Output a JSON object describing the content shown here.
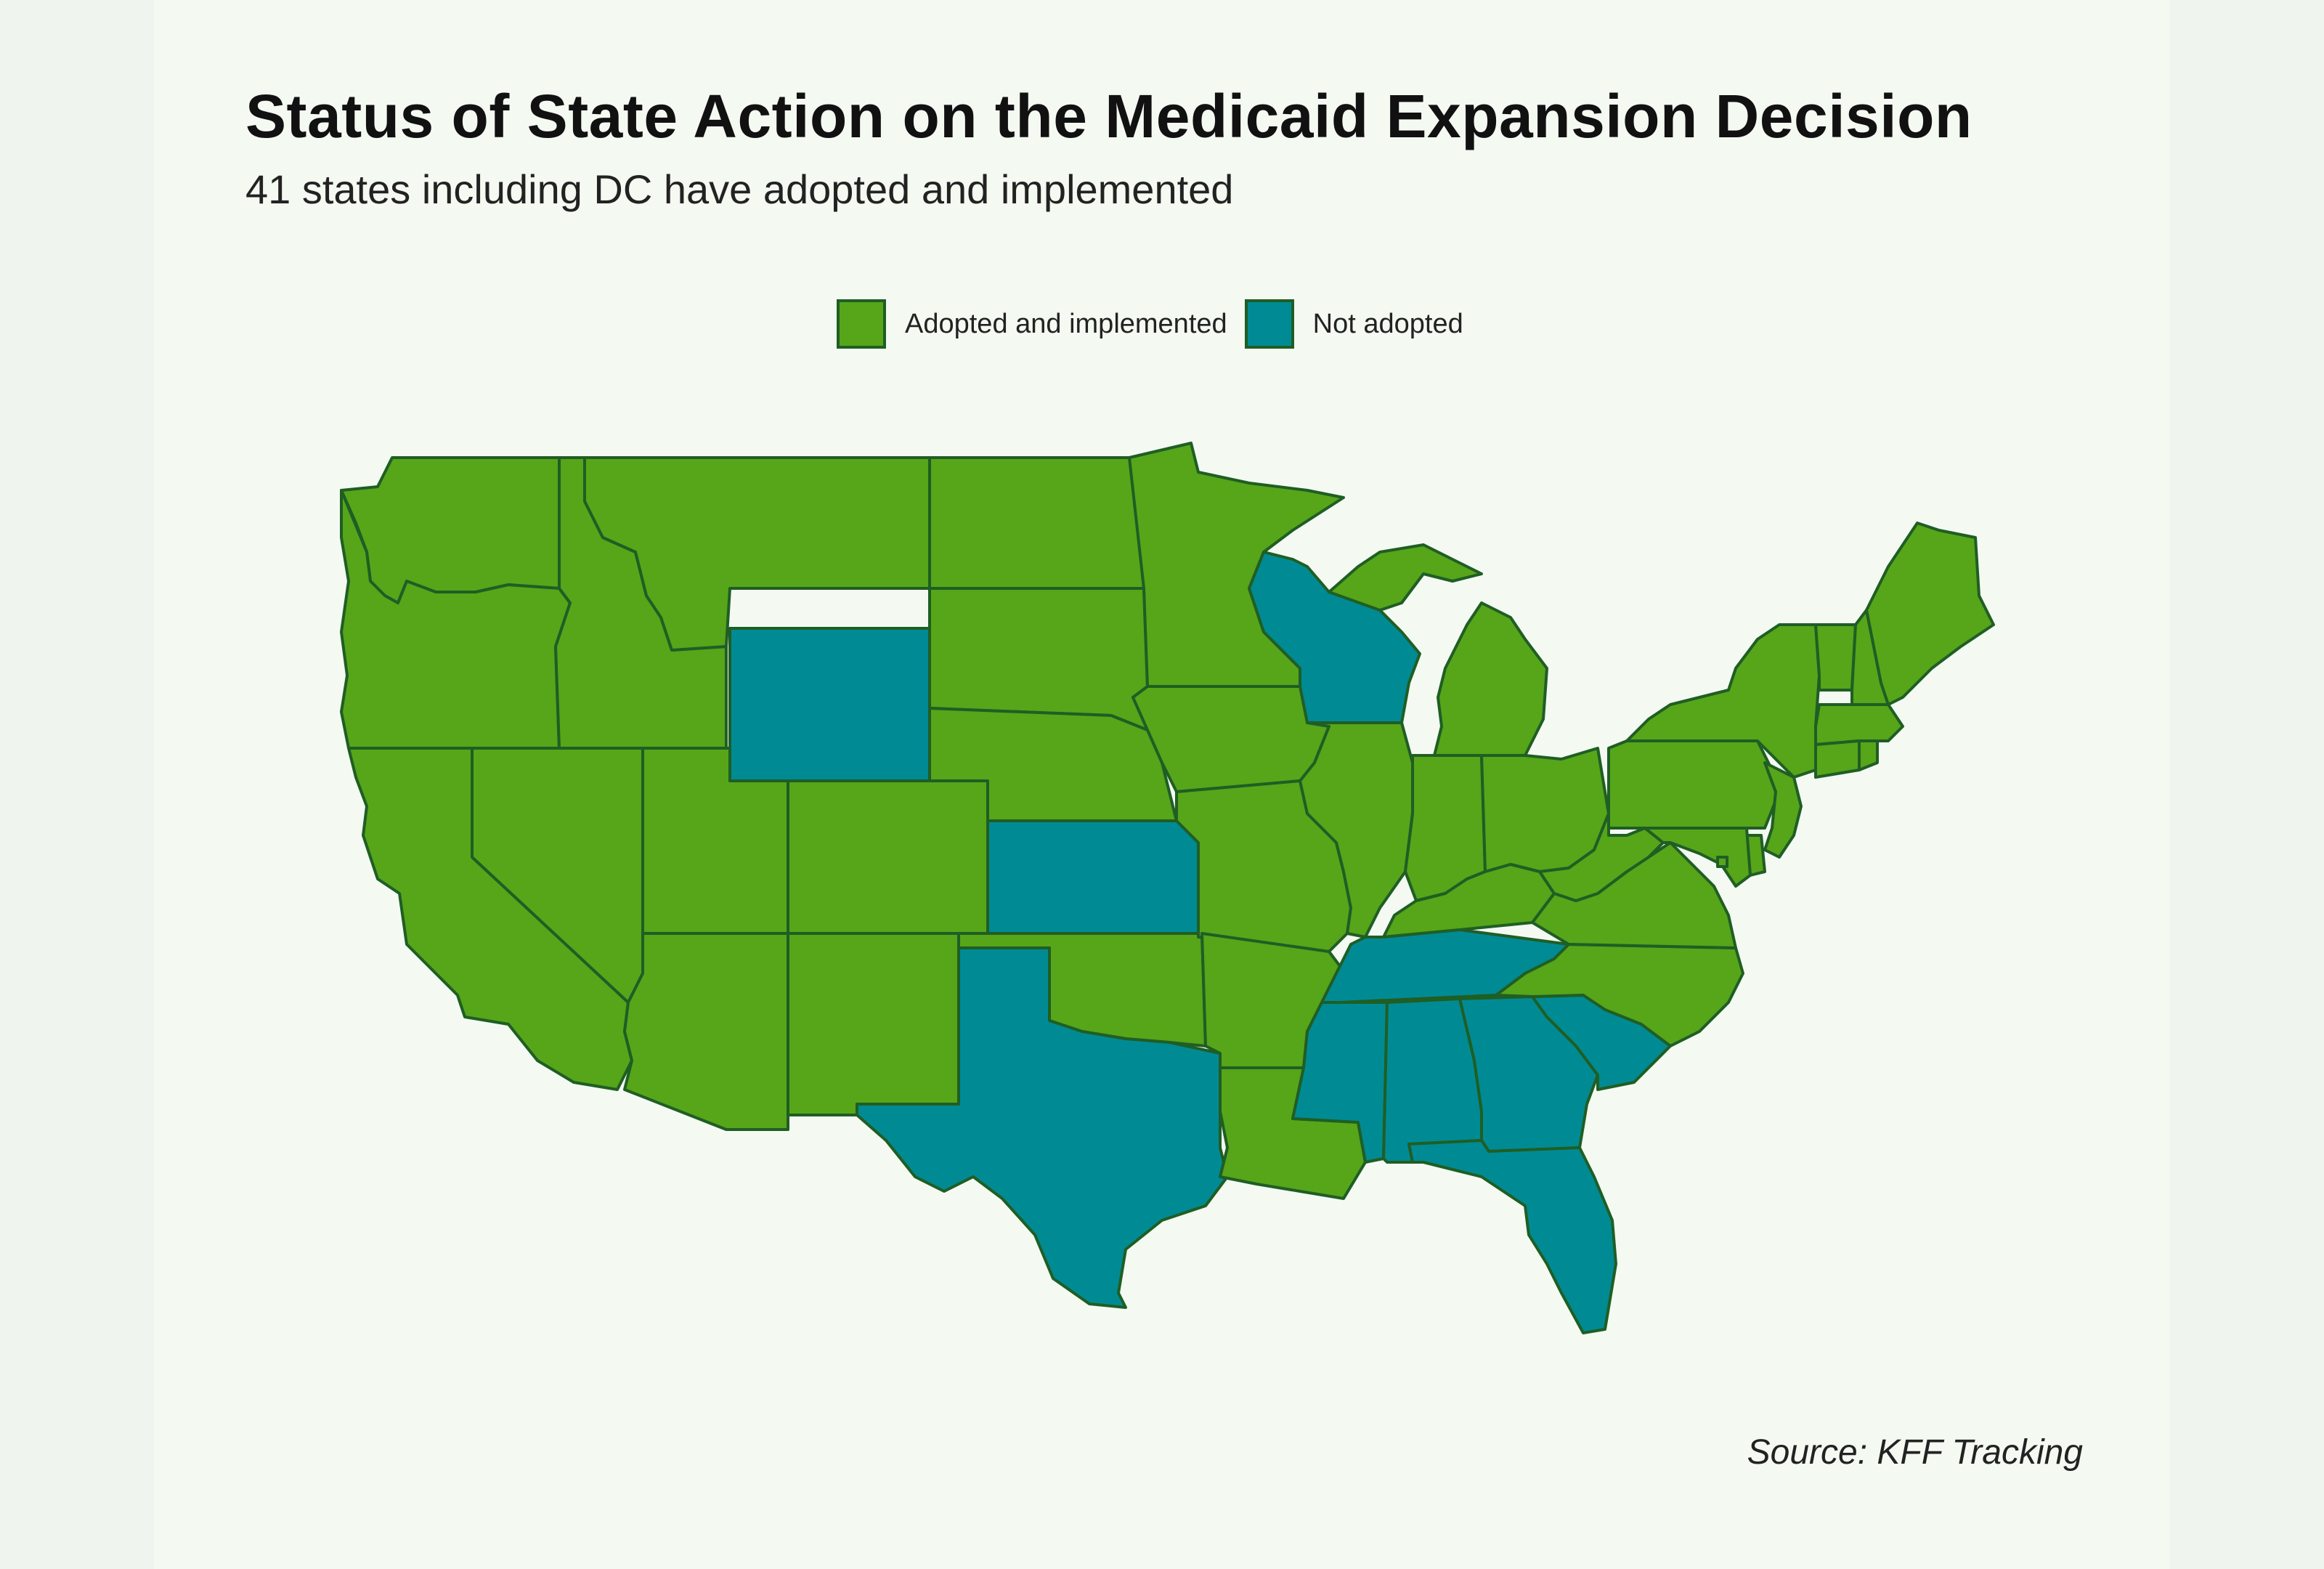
{
  "title": "Status of State Action on the Medicaid Expansion Decision",
  "subtitle": "41 states including DC have adopted and implemented",
  "legend": [
    {
      "label": "Adopted and implemented",
      "color": "#57a519"
    },
    {
      "label": "Not adopted",
      "color": "#008b94"
    }
  ],
  "source": "Source: KFF Tracking",
  "colors": {
    "adopted": "#57a519",
    "not_adopted": "#008b94",
    "border": "#1f5e24",
    "background": "#f4f9f2"
  },
  "states": {
    "WA": "adopted",
    "OR": "adopted",
    "CA": "adopted",
    "ID": "adopted",
    "NV": "adopted",
    "MT": "adopted",
    "WY": "not_adopted",
    "UT": "adopted",
    "AZ": "adopted",
    "CO": "adopted",
    "NM": "adopted",
    "ND": "adopted",
    "SD": "adopted",
    "NE": "adopted",
    "KS": "not_adopted",
    "OK": "adopted",
    "TX": "not_adopted",
    "MN": "adopted",
    "IA": "adopted",
    "MO": "adopted",
    "AR": "adopted",
    "LA": "adopted",
    "WI": "not_adopted",
    "IL": "adopted",
    "MI": "adopted",
    "IN": "adopted",
    "OH": "adopted",
    "KY": "adopted",
    "TN": "not_adopted",
    "MS": "not_adopted",
    "AL": "not_adopted",
    "GA": "not_adopted",
    "FL": "not_adopted",
    "SC": "not_adopted",
    "NC": "adopted",
    "VA": "adopted",
    "WV": "adopted",
    "PA": "adopted",
    "NY": "adopted",
    "VT": "adopted",
    "NH": "adopted",
    "ME": "adopted",
    "MA": "adopted",
    "CT": "adopted",
    "RI": "adopted",
    "NJ": "adopted",
    "DE": "adopted",
    "MD": "adopted",
    "DC": "adopted"
  }
}
